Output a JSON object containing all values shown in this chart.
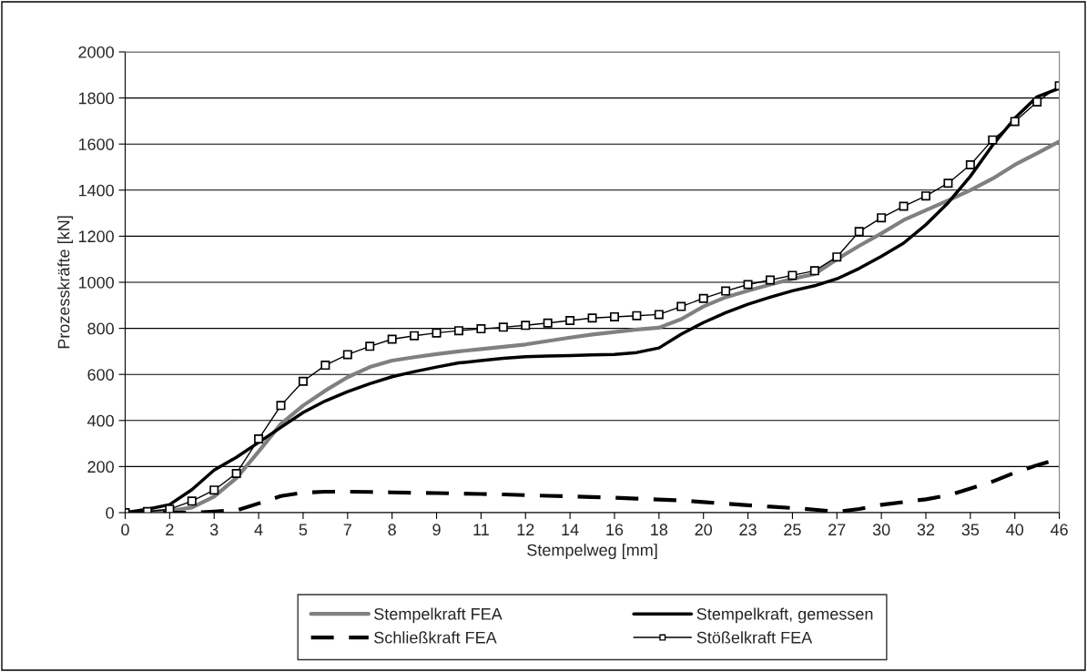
{
  "chart_data": {
    "type": "line",
    "xlabel": "Stempelweg [mm]",
    "ylabel": "Prozesskräfte [kN]",
    "categories": [
      "0",
      null,
      "2",
      null,
      "3",
      null,
      "4",
      null,
      "5",
      null,
      "7",
      null,
      "8",
      null,
      "9",
      null,
      "11",
      null,
      "12",
      null,
      "14",
      null,
      "16",
      null,
      "18",
      null,
      "20",
      null,
      "23",
      null,
      "25",
      null,
      "27",
      null,
      "30",
      null,
      "32",
      null,
      "35",
      null,
      "40",
      null,
      "46"
    ],
    "ylim": [
      0,
      2000
    ],
    "yticks": [
      0,
      200,
      400,
      600,
      800,
      1000,
      1200,
      1400,
      1600,
      1800,
      2000
    ],
    "grid": "y",
    "legend": "bottom",
    "series": [
      {
        "name": "Stempelkraft FEA",
        "color": "#808080",
        "line_style": "solid",
        "marker": "none",
        "values": [
          0,
          3,
          8,
          22,
          70,
          150,
          265,
          385,
          465,
          530,
          588,
          632,
          660,
          675,
          688,
          700,
          710,
          720,
          730,
          745,
          760,
          773,
          784,
          795,
          803,
          840,
          895,
          935,
          963,
          990,
          1015,
          1036,
          1100,
          1158,
          1212,
          1270,
          1313,
          1355,
          1400,
          1450,
          1510,
          1560,
          1611
        ]
      },
      {
        "name": "Stempelkraft, gemessen",
        "color": "#000000",
        "line_style": "solid",
        "marker": "none",
        "values": [
          0,
          15,
          35,
          100,
          185,
          240,
          305,
          370,
          435,
          485,
          525,
          560,
          590,
          612,
          632,
          650,
          660,
          670,
          677,
          680,
          682,
          685,
          687,
          695,
          715,
          775,
          825,
          868,
          905,
          935,
          963,
          985,
          1015,
          1060,
          1113,
          1170,
          1250,
          1345,
          1460,
          1595,
          1712,
          1805,
          1842
        ]
      },
      {
        "name": "Schließkraft FEA",
        "color": "#000000",
        "line_style": "dashed",
        "marker": "none",
        "values": [
          0,
          0,
          0,
          0,
          5,
          10,
          40,
          72,
          87,
          91,
          91,
          90,
          88,
          86,
          85,
          83,
          81,
          79,
          76,
          73,
          71,
          68,
          65,
          61,
          57,
          53,
          46,
          39,
          32,
          26,
          20,
          13,
          4,
          16,
          34,
          46,
          58,
          75,
          105,
          135,
          174,
          206,
          235
        ]
      },
      {
        "name": "Stößelkraft FEA",
        "color": "#000000",
        "line_style": "solid",
        "marker": "square",
        "values": [
          0,
          5,
          15,
          50,
          98,
          170,
          320,
          465,
          570,
          640,
          686,
          722,
          753,
          768,
          780,
          790,
          798,
          805,
          813,
          823,
          834,
          845,
          850,
          855,
          860,
          895,
          930,
          962,
          990,
          1010,
          1030,
          1050,
          1110,
          1220,
          1280,
          1330,
          1375,
          1430,
          1510,
          1618,
          1698,
          1783,
          1853
        ]
      }
    ]
  }
}
